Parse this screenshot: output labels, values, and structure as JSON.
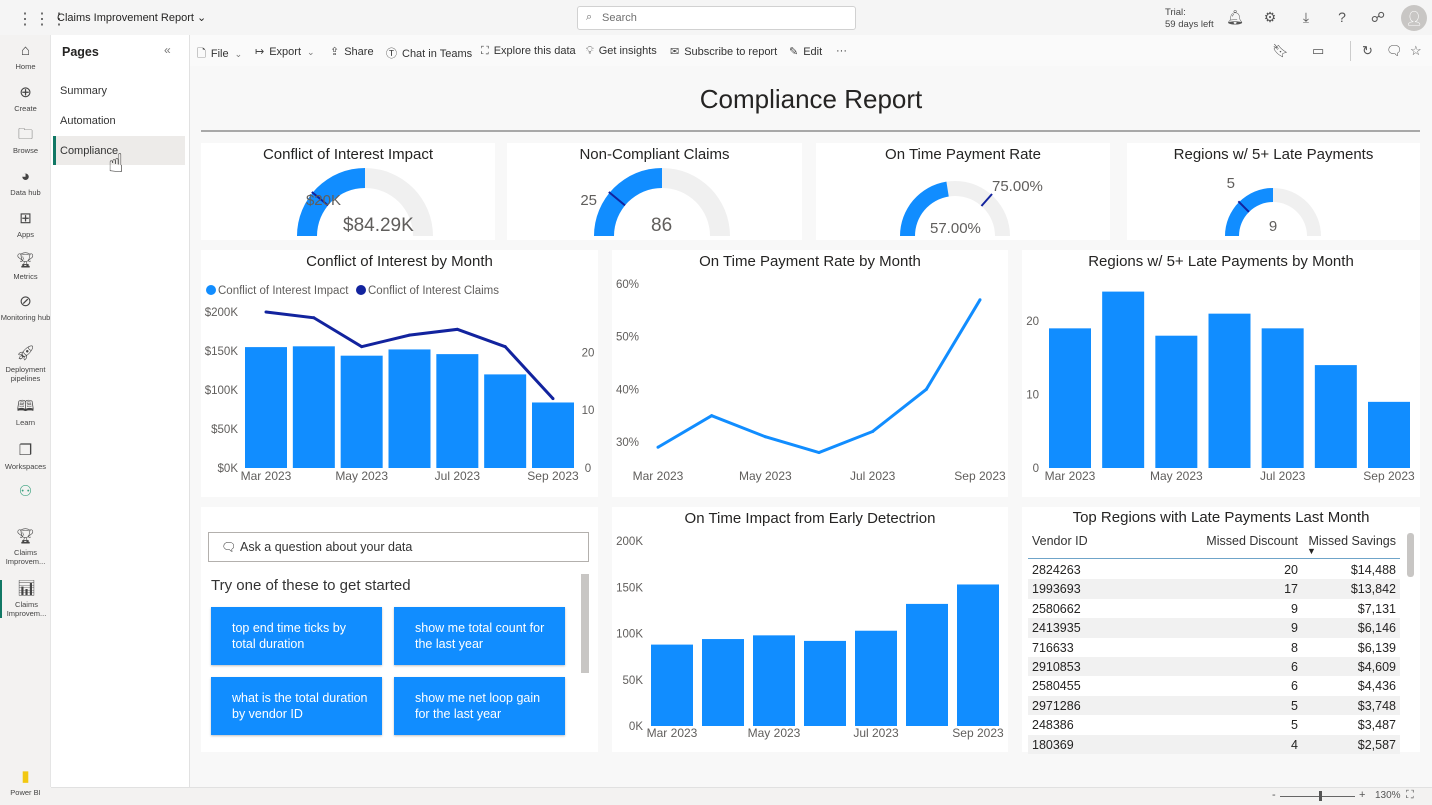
{
  "app": {
    "title": "Claims Improvement Report",
    "search_placeholder": "Search",
    "trial_line1": "Trial:",
    "trial_line2": "59 days left",
    "top_icons": [
      "bell-icon",
      "gear-icon",
      "download-icon",
      "help-icon",
      "share-people-icon",
      "avatar-icon"
    ]
  },
  "rail": [
    {
      "label": "Home",
      "icon": "home-icon"
    },
    {
      "label": "Create",
      "icon": "plus-circle-icon"
    },
    {
      "label": "Browse",
      "icon": "folder-icon"
    },
    {
      "label": "Data hub",
      "icon": "data-hub-icon"
    },
    {
      "label": "Apps",
      "icon": "apps-icon"
    },
    {
      "label": "Metrics",
      "icon": "trophy-icon"
    },
    {
      "label": "Monitoring hub",
      "icon": "monitoring-icon"
    },
    {
      "label": "Deployment pipelines",
      "icon": "rocket-icon"
    },
    {
      "label": "Learn",
      "icon": "book-icon"
    },
    {
      "label": "Workspaces",
      "icon": "workspaces-icon"
    },
    {
      "label": "",
      "icon": "people-group-icon"
    },
    {
      "label": "Claims Improvem...",
      "icon": "trophy-app-icon"
    },
    {
      "label": "Claims Improvem...",
      "icon": "report-icon"
    },
    {
      "label": "Power BI",
      "icon": "power-bi-logo-icon"
    }
  ],
  "pages": {
    "title": "Pages",
    "items": [
      "Summary",
      "Automation",
      "Compliance"
    ],
    "active": "Compliance"
  },
  "toolbar": {
    "items": [
      {
        "label": "File",
        "icon": "file-icon",
        "dropdown": true
      },
      {
        "label": "Export",
        "icon": "export-icon",
        "dropdown": true
      },
      {
        "label": "Share",
        "icon": "share-icon"
      },
      {
        "label": "Chat in Teams",
        "icon": "teams-icon"
      },
      {
        "label": "Explore this data",
        "icon": "explore-icon"
      },
      {
        "label": "Get insights",
        "icon": "lightbulb-icon"
      },
      {
        "label": "Subscribe to report",
        "icon": "subscribe-icon"
      },
      {
        "label": "Edit",
        "icon": "pencil-icon"
      },
      {
        "label": "···",
        "icon": "more-icon"
      }
    ]
  },
  "report": {
    "title": "Compliance Report"
  },
  "gauges": [
    {
      "title": "Conflict of Interest Impact",
      "value_label": "$84.29K",
      "target_label": "$20K",
      "value_fraction": 0.5,
      "target_fraction": 0.22
    },
    {
      "title": "Non-Compliant Claims",
      "value_label": "86",
      "target_label": "25",
      "value_fraction": 0.5,
      "target_fraction": 0.22
    },
    {
      "title": "On Time Payment Rate",
      "value_label": "57.00%",
      "target_label": "75.00%",
      "value_fraction": 0.45,
      "target_fraction": 0.73
    },
    {
      "title": "Regions w/ 5+ Late Payments",
      "value_label": "9",
      "target_label": "5",
      "value_fraction": 0.5,
      "target_fraction": 0.25
    }
  ],
  "chart_data": [
    {
      "type": "bar",
      "title": "Conflict of Interest by Month",
      "categories": [
        "Mar 2023",
        "Apr 2023",
        "May 2023",
        "Jun 2023",
        "Jul 2023",
        "Aug 2023",
        "Sep 2023"
      ],
      "x_tick_labels": [
        "Mar 2023",
        "May 2023",
        "Jul 2023",
        "Sep 2023"
      ],
      "series": [
        {
          "name": "Conflict of Interest Impact",
          "kind": "bar",
          "axis": "left",
          "values": [
            155000,
            156000,
            144000,
            152000,
            146000,
            120000,
            84000
          ],
          "color": "#118dff"
        },
        {
          "name": "Conflict of Interest Claims",
          "kind": "line",
          "axis": "right",
          "values": [
            27,
            26,
            21,
            23,
            24,
            21,
            12
          ],
          "color": "#12239e"
        }
      ],
      "y_left": {
        "ylim": [
          0,
          200000
        ],
        "ticks": [
          "$0K",
          "$50K",
          "$100K",
          "$150K",
          "$200K"
        ]
      },
      "y_right": {
        "ylim": [
          0,
          27
        ],
        "ticks": [
          "0",
          "10",
          "20"
        ],
        "tick_values": [
          0,
          10,
          20
        ]
      },
      "legend": "top-left",
      "grid": false
    },
    {
      "type": "line",
      "title": "On Time Payment Rate by Month",
      "categories": [
        "Mar 2023",
        "Apr 2023",
        "May 2023",
        "Jun 2023",
        "Jul 2023",
        "Aug 2023",
        "Sep 2023"
      ],
      "x_tick_labels": [
        "Mar 2023",
        "May 2023",
        "Jul 2023",
        "Sep 2023"
      ],
      "values": [
        29,
        35,
        31,
        28,
        32,
        40,
        57
      ],
      "color": "#118dff",
      "ylim": [
        30,
        60
      ],
      "y_ticks": [
        "30%",
        "40%",
        "50%",
        "60%"
      ],
      "grid": false
    },
    {
      "type": "bar",
      "title": "Regions w/ 5+ Late Payments by Month",
      "categories": [
        "Mar 2023",
        "Apr 2023",
        "May 2023",
        "Jun 2023",
        "Jul 2023",
        "Aug 2023",
        "Sep 2023"
      ],
      "x_tick_labels": [
        "Mar 2023",
        "May 2023",
        "Jul 2023",
        "Sep 2023"
      ],
      "values": [
        19,
        24,
        18,
        21,
        19,
        14,
        9
      ],
      "color": "#118dff",
      "ylim": [
        0,
        20
      ],
      "y_ticks": [
        "0",
        "10",
        "20"
      ],
      "grid": false
    },
    {
      "type": "bar",
      "title": "On Time Impact from Early Detectrion",
      "categories": [
        "Mar 2023",
        "Apr 2023",
        "May 2023",
        "Jun 2023",
        "Jul 2023",
        "Aug 2023",
        "Sep 2023"
      ],
      "x_tick_labels": [
        "Mar 2023",
        "May 2023",
        "Jul 2023",
        "Sep 2023"
      ],
      "values": [
        88000,
        94000,
        98000,
        92000,
        103000,
        132000,
        153000
      ],
      "color": "#118dff",
      "ylim": [
        0,
        200000
      ],
      "y_ticks": [
        "0K",
        "50K",
        "100K",
        "150K",
        "200K"
      ],
      "grid": false
    }
  ],
  "qa": {
    "placeholder": "Ask a question about your data",
    "prompt": "Try one of these to get started",
    "suggestions": [
      "top end time ticks by total duration",
      "show me total count for the last year",
      "what is the total duration by vendor ID",
      "show me net loop gain for the last year"
    ]
  },
  "table": {
    "title": "Top Regions with Late Payments Last Month",
    "columns": [
      "Vendor ID",
      "Missed Discount",
      "Missed Savings"
    ],
    "sorted_column": "Missed Savings",
    "sort": "descending",
    "rows": [
      [
        "2824263",
        "20",
        "$14,488"
      ],
      [
        "1993693",
        "17",
        "$13,842"
      ],
      [
        "2580662",
        "9",
        "$7,131"
      ],
      [
        "2413935",
        "9",
        "$6,146"
      ],
      [
        "716633",
        "8",
        "$6,139"
      ],
      [
        "2910853",
        "6",
        "$4,609"
      ],
      [
        "2580455",
        "6",
        "$4,436"
      ],
      [
        "2971286",
        "5",
        "$3,748"
      ],
      [
        "248386",
        "5",
        "$3,487"
      ],
      [
        "180369",
        "4",
        "$2,587"
      ]
    ]
  },
  "status": {
    "zoom": "130%",
    "zoom_minus": "-",
    "zoom_plus": "+"
  },
  "colors": {
    "accent": "#118dff",
    "dark_series": "#12239e",
    "gauge_track": "#f0f0f0",
    "active_page": "#117865"
  }
}
